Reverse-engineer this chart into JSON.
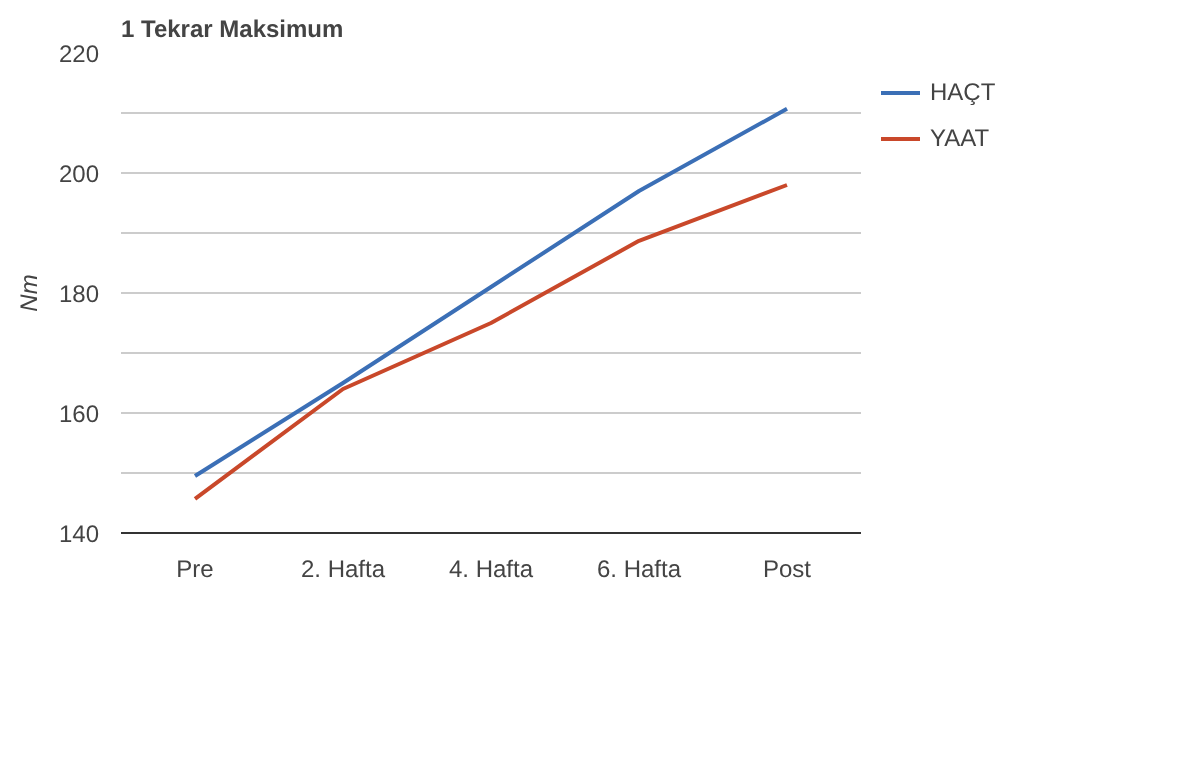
{
  "chart_data": {
    "type": "line",
    "title": "1 Tekrar Maksimum",
    "ylabel": "Nm",
    "categories": [
      "Pre",
      "2. Hafta",
      "4. Hafta",
      "6. Hafta",
      "Post"
    ],
    "series": [
      {
        "name": "HAÇT",
        "color": "#3b6fb6",
        "values": [
          149.5,
          165,
          181,
          197,
          210.7
        ]
      },
      {
        "name": "YAAT",
        "color": "#c9482a",
        "values": [
          145.7,
          164,
          175,
          188.7,
          198
        ]
      }
    ],
    "ylim": [
      140,
      220
    ],
    "yticks": [
      140,
      {
        "value": 150,
        "label": null
      },
      160,
      {
        "value": 170,
        "label": null
      },
      180,
      {
        "value": 190,
        "label": null
      },
      200,
      {
        "value": 210,
        "label": null
      },
      220
    ],
    "grid": "y",
    "legend": "right",
    "line_style": "solid",
    "marker": "none"
  }
}
